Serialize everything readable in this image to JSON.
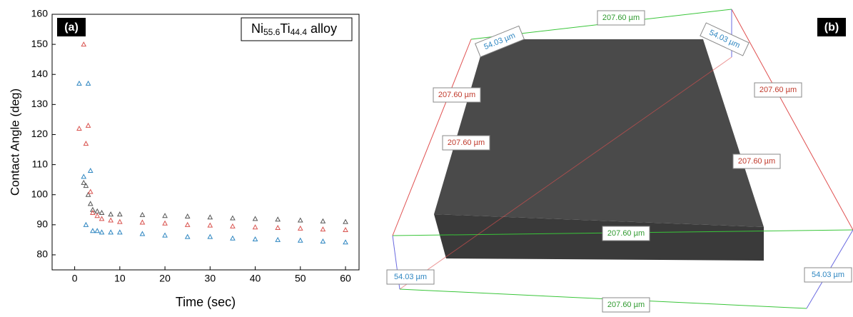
{
  "chart_data": {
    "type": "scatter",
    "panel_label": "(a)",
    "annotation": [
      "Ni",
      "55.6",
      "Ti",
      "44.4",
      " alloy"
    ],
    "x_label": "Time (sec)",
    "y_label": "Contact Angle (deg)",
    "xlim": [
      -5,
      63
    ],
    "xticks": [
      0,
      10,
      20,
      30,
      40,
      50,
      60
    ],
    "ylim": [
      75,
      160
    ],
    "yticks": [
      80,
      90,
      100,
      110,
      120,
      130,
      140,
      150,
      160
    ],
    "series": [
      {
        "color": "#555555",
        "x": [
          2,
          2.5,
          3,
          3.5,
          4,
          5,
          6,
          8,
          10,
          15,
          20,
          25,
          30,
          35,
          40,
          45,
          50,
          55,
          60
        ],
        "values": [
          104,
          103,
          100,
          97,
          95,
          94.5,
          94,
          93.5,
          93.5,
          93.3,
          93,
          92.8,
          92.5,
          92.2,
          92,
          91.8,
          91.5,
          91.2,
          91
        ]
      },
      {
        "color": "#d9534f",
        "x": [
          1,
          2,
          2.5,
          3,
          3.5,
          4,
          5,
          6,
          8,
          10,
          15,
          20,
          25,
          30,
          35,
          40,
          45,
          50,
          55,
          60
        ],
        "values": [
          122,
          150,
          117,
          123,
          101,
          94,
          93,
          92,
          91.5,
          91,
          90.8,
          90.5,
          90,
          89.8,
          89.5,
          89.2,
          89,
          88.8,
          88.5,
          88.3
        ]
      },
      {
        "color": "#2e86c1",
        "x": [
          1,
          2,
          2.5,
          3,
          3.5,
          4,
          5,
          6,
          8,
          10,
          15,
          20,
          25,
          30,
          35,
          40,
          45,
          50,
          55,
          60
        ],
        "values": [
          137,
          106,
          90,
          137,
          108,
          88,
          88,
          87.5,
          87.5,
          87.5,
          87,
          86.5,
          86,
          86,
          85.5,
          85.2,
          85,
          84.8,
          84.5,
          84.2
        ]
      }
    ]
  },
  "panel_b": {
    "label": "(b)",
    "dimension_labels": [
      {
        "text": "207.60 µm",
        "color": "#2e9a2e"
      },
      {
        "text": "54.03 µm",
        "color": "#2e86c1"
      },
      {
        "text": "54.03 µm",
        "color": "#2e86c1"
      },
      {
        "text": "207.60 µm",
        "color": "#c0392b"
      },
      {
        "text": "207.60 µm",
        "color": "#c0392b"
      },
      {
        "text": "207.60 µm",
        "color": "#c0392b"
      },
      {
        "text": "207.60 µm",
        "color": "#c0392b"
      },
      {
        "text": "207.60 µm",
        "color": "#2e9a2e"
      },
      {
        "text": "54.03 µm",
        "color": "#2e86c1"
      },
      {
        "text": "54.03 µm",
        "color": "#2e86c1"
      },
      {
        "text": "207.60 µm",
        "color": "#2e9a2e"
      }
    ]
  }
}
